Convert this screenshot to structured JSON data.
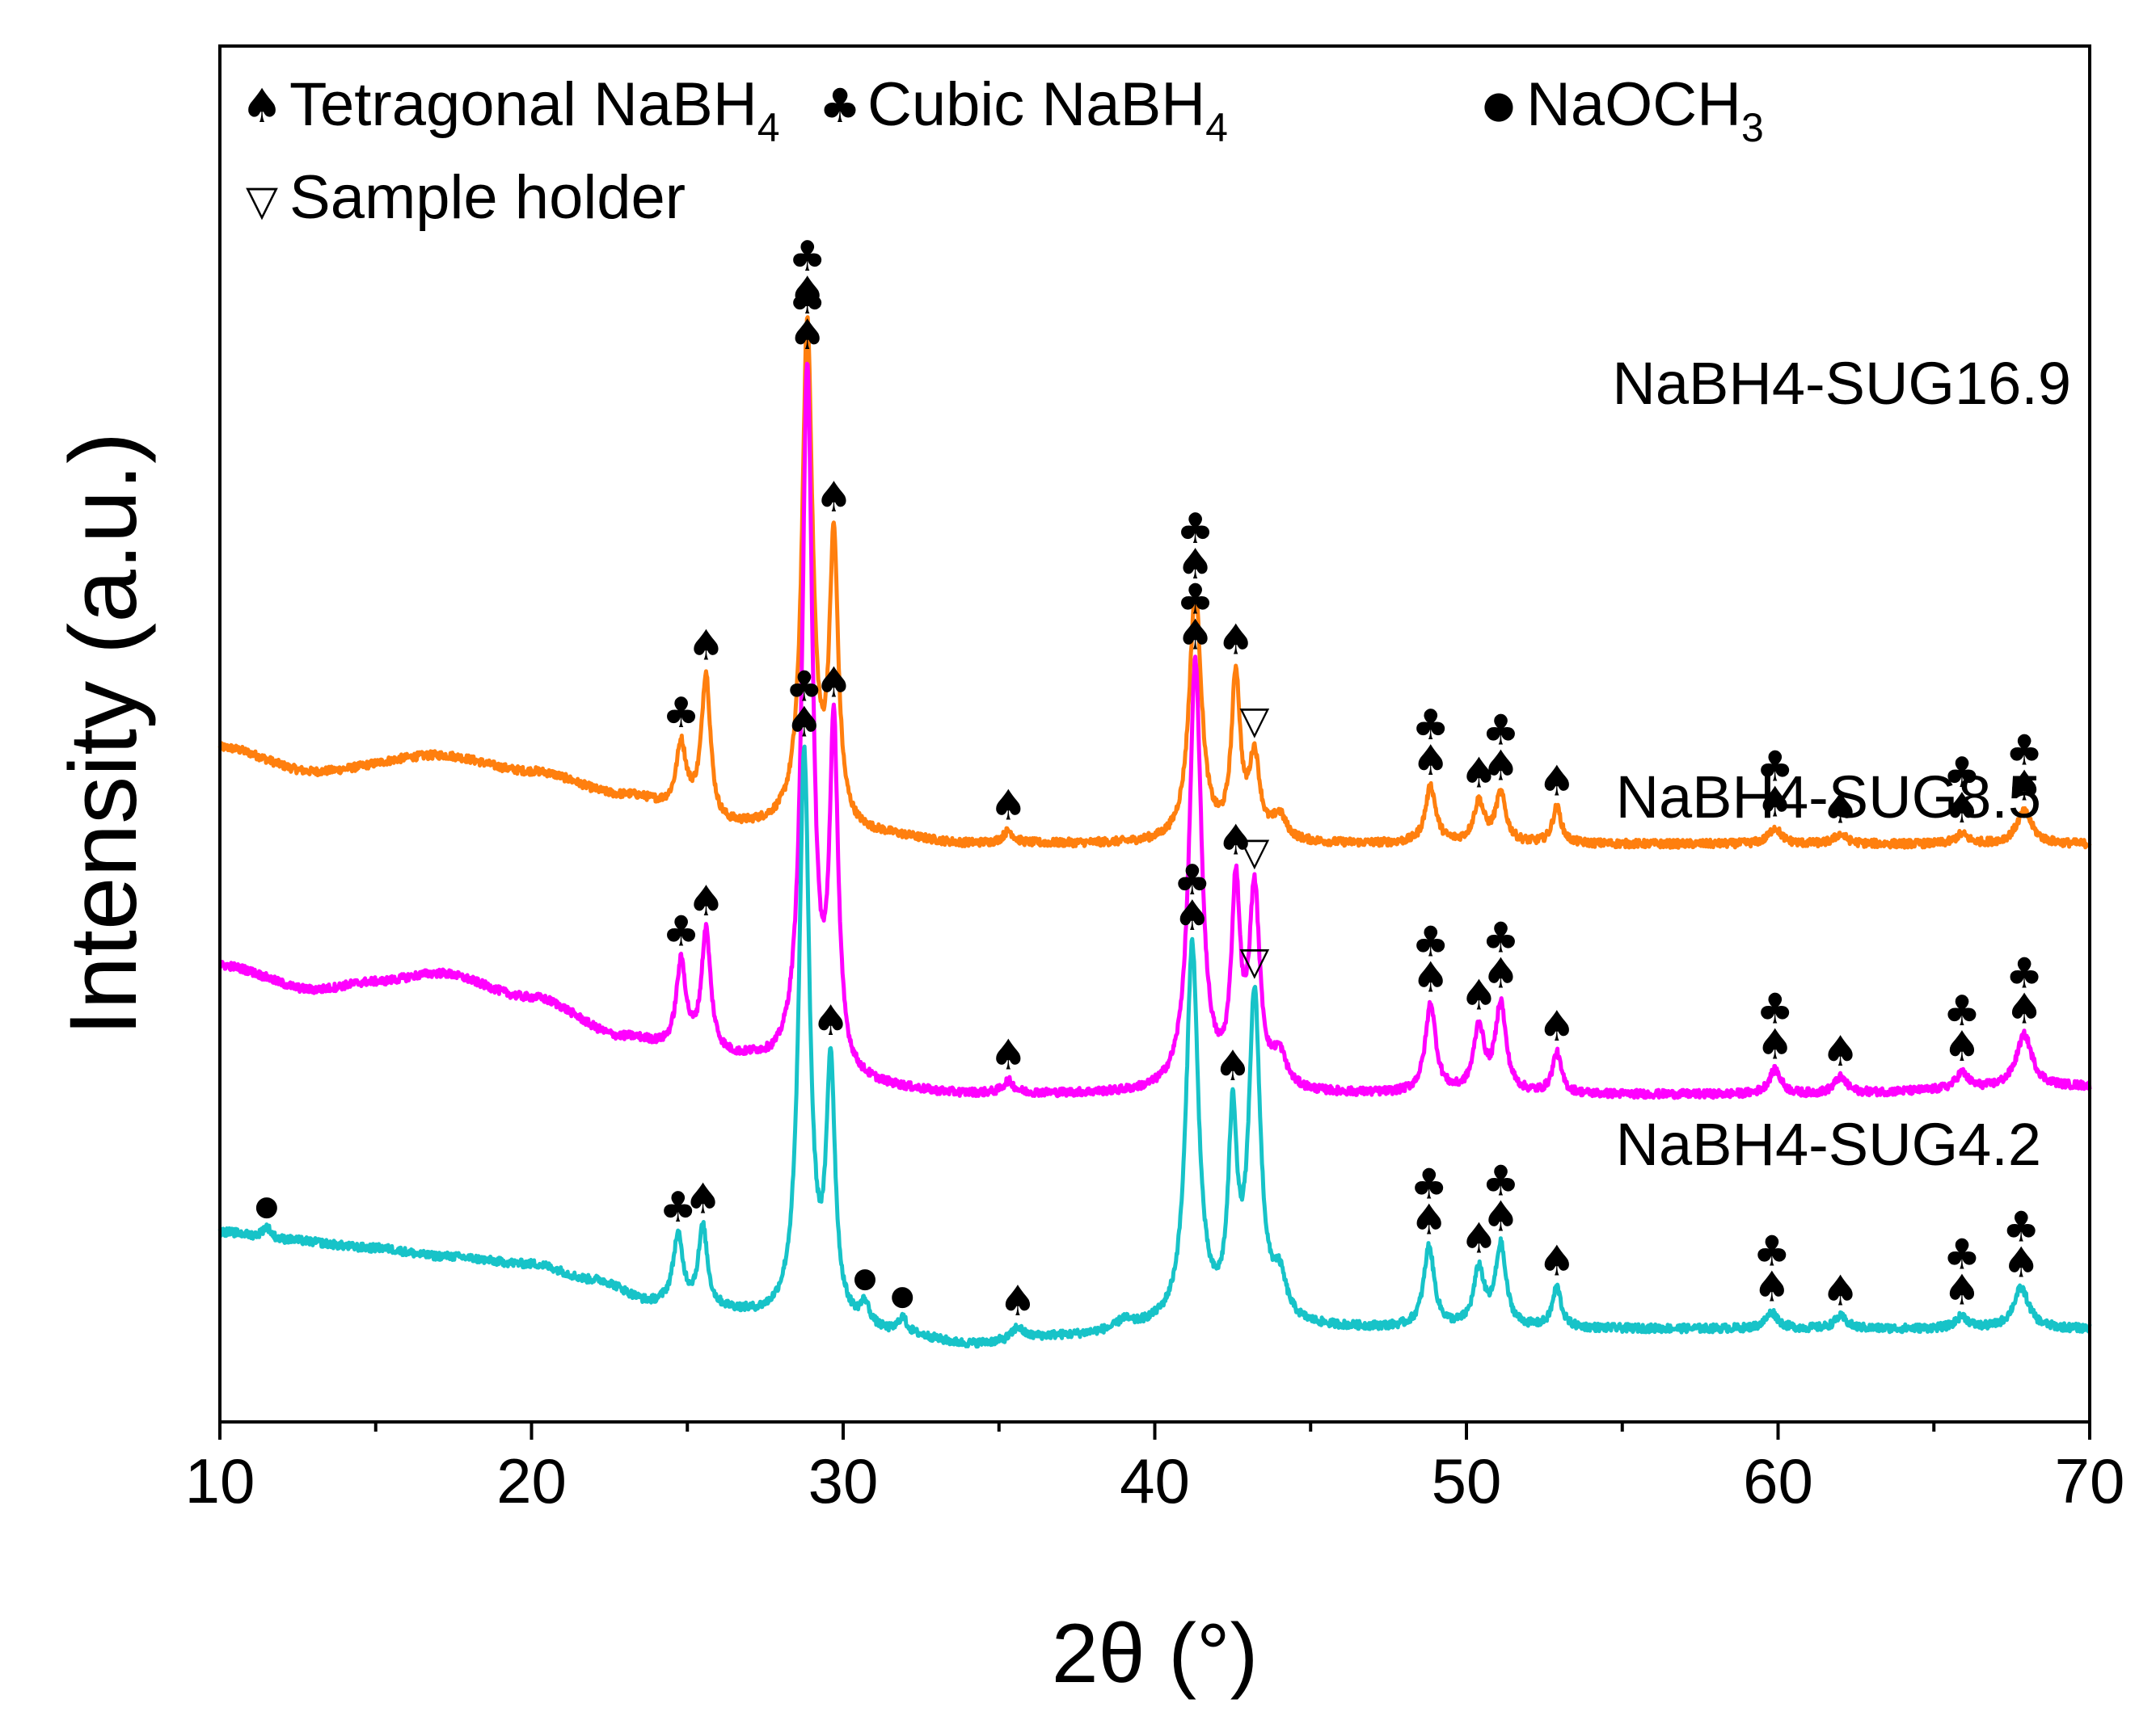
{
  "chart_data": {
    "type": "line",
    "title": "",
    "xlabel": "2θ (°)",
    "ylabel": "Intensity (a.u.)",
    "xlim": [
      10,
      70
    ],
    "xticks": [
      10,
      20,
      30,
      40,
      50,
      60,
      70
    ],
    "yticks_shown": false,
    "colors": {
      "SUG16.9": "#ff7f0e",
      "SUG8.5": "#ff00ff",
      "SUG4.2": "#17c3c8"
    },
    "legend": [
      {
        "symbol": "♠",
        "name": "tetragonal",
        "label": "Tetragonal NaBH",
        "sub": "4"
      },
      {
        "symbol": "♣",
        "name": "cubic",
        "label": "Cubic NaBH",
        "sub": "4"
      },
      {
        "symbol": "●",
        "name": "naoch3",
        "label": "NaOCH",
        "sub": "3"
      },
      {
        "symbol": "▽",
        "name": "holder",
        "label": "Sample holder",
        "sub": ""
      }
    ],
    "series": [
      {
        "name": "NaBH4-SUG16.9",
        "key": "SUG16.9",
        "offset": 0.62,
        "baseline": [
          [
            10,
            0.1
          ],
          [
            13,
            0.07
          ],
          [
            17,
            0.09
          ],
          [
            20,
            0.07
          ],
          [
            23,
            0.04
          ],
          [
            25,
            0.02
          ],
          [
            26,
            0.0
          ],
          [
            28,
            0.0
          ],
          [
            31,
            -0.01
          ],
          [
            34,
            -0.02
          ],
          [
            37,
            -0.02
          ],
          [
            40,
            -0.02
          ],
          [
            44,
            -0.02
          ],
          [
            48,
            -0.02
          ],
          [
            55,
            -0.02
          ],
          [
            60,
            -0.02
          ],
          [
            70,
            -0.02
          ]
        ],
        "peaks": [
          {
            "x": 24.8,
            "h": 0.08,
            "w": 0.28
          },
          {
            "x": 25.6,
            "h": 0.18,
            "w": 0.26
          },
          {
            "x": 28.85,
            "h": 0.62,
            "w": 0.3
          },
          {
            "x": 29.7,
            "h": 0.35,
            "w": 0.25
          },
          {
            "x": 35.3,
            "h": 0.015,
            "w": 0.3
          },
          {
            "x": 41.3,
            "h": 0.31,
            "w": 0.35
          },
          {
            "x": 42.6,
            "h": 0.2,
            "w": 0.25
          },
          {
            "x": 43.2,
            "h": 0.1,
            "w": 0.3
          },
          {
            "x": 44.0,
            "h": 0.03,
            "w": 0.4
          },
          {
            "x": 48.85,
            "h": 0.07,
            "w": 0.3
          },
          {
            "x": 50.4,
            "h": 0.05,
            "w": 0.3
          },
          {
            "x": 51.1,
            "h": 0.06,
            "w": 0.3
          },
          {
            "x": 52.9,
            "h": 0.045,
            "w": 0.25
          },
          {
            "x": 59.9,
            "h": 0.02,
            "w": 0.35
          },
          {
            "x": 62.0,
            "h": 0.012,
            "w": 0.35
          },
          {
            "x": 65.9,
            "h": 0.012,
            "w": 0.35
          },
          {
            "x": 67.9,
            "h": 0.04,
            "w": 0.45
          }
        ],
        "label": "NaBH4-SUG16.9"
      },
      {
        "name": "NaBH4-SUG8.5",
        "key": "SUG8.5",
        "offset": 0.3,
        "baseline": [
          [
            10,
            0.15
          ],
          [
            13,
            0.12
          ],
          [
            15,
            0.13
          ],
          [
            17,
            0.14
          ],
          [
            20,
            0.11
          ],
          [
            23,
            0.06
          ],
          [
            25,
            0.04
          ],
          [
            27,
            0.03
          ],
          [
            28,
            0.02
          ],
          [
            30,
            0.0
          ],
          [
            34,
            -0.01
          ],
          [
            37,
            -0.01
          ],
          [
            40,
            -0.01
          ],
          [
            44,
            -0.01
          ],
          [
            48,
            -0.01
          ],
          [
            55,
            -0.01
          ],
          [
            60,
            -0.01
          ],
          [
            70,
            0.0
          ]
        ],
        "peaks": [
          {
            "x": 24.8,
            "h": 0.11,
            "w": 0.28
          },
          {
            "x": 25.6,
            "h": 0.15,
            "w": 0.26
          },
          {
            "x": 28.85,
            "h": 0.87,
            "w": 0.3
          },
          {
            "x": 29.7,
            "h": 0.42,
            "w": 0.25
          },
          {
            "x": 35.3,
            "h": 0.015,
            "w": 0.3
          },
          {
            "x": 41.3,
            "h": 0.53,
            "w": 0.35
          },
          {
            "x": 42.6,
            "h": 0.24,
            "w": 0.25
          },
          {
            "x": 43.2,
            "h": 0.24,
            "w": 0.3
          },
          {
            "x": 44.0,
            "h": 0.04,
            "w": 0.4
          },
          {
            "x": 48.85,
            "h": 0.11,
            "w": 0.3
          },
          {
            "x": 50.4,
            "h": 0.08,
            "w": 0.3
          },
          {
            "x": 51.1,
            "h": 0.11,
            "w": 0.3
          },
          {
            "x": 52.9,
            "h": 0.05,
            "w": 0.25
          },
          {
            "x": 59.9,
            "h": 0.03,
            "w": 0.35
          },
          {
            "x": 62.0,
            "h": 0.02,
            "w": 0.35
          },
          {
            "x": 65.9,
            "h": 0.02,
            "w": 0.35
          },
          {
            "x": 67.9,
            "h": 0.065,
            "w": 0.45
          }
        ],
        "label": "NaBH4-SUG8.5"
      },
      {
        "name": "NaBH4-SUG4.2",
        "key": "SUG4.2",
        "offset": 0.0,
        "baseline": [
          [
            10,
            0.12
          ],
          [
            12,
            0.11
          ],
          [
            15,
            0.1
          ],
          [
            17,
            0.09
          ],
          [
            20,
            0.08
          ],
          [
            22,
            0.06
          ],
          [
            24,
            0.03
          ],
          [
            26,
            0.02
          ],
          [
            28,
            0.01
          ],
          [
            30,
            0.0
          ],
          [
            32,
            -0.01
          ],
          [
            34,
            -0.02
          ],
          [
            37,
            -0.01
          ],
          [
            40,
            0.0
          ],
          [
            44,
            0.0
          ],
          [
            47,
            0.0
          ],
          [
            55,
            0.0
          ],
          [
            60,
            0.0
          ],
          [
            70,
            0.0
          ]
        ],
        "peaks": [
          {
            "x": 11.5,
            "h": 0.015,
            "w": 0.25
          },
          {
            "x": 24.7,
            "h": 0.085,
            "w": 0.28
          },
          {
            "x": 25.5,
            "h": 0.1,
            "w": 0.26
          },
          {
            "x": 28.75,
            "h": 0.7,
            "w": 0.3
          },
          {
            "x": 29.6,
            "h": 0.31,
            "w": 0.25
          },
          {
            "x": 30.7,
            "h": 0.025,
            "w": 0.25
          },
          {
            "x": 31.9,
            "h": 0.02,
            "w": 0.25
          },
          {
            "x": 35.6,
            "h": 0.015,
            "w": 0.3
          },
          {
            "x": 39.0,
            "h": 0.01,
            "w": 0.3
          },
          {
            "x": 41.2,
            "h": 0.47,
            "w": 0.35
          },
          {
            "x": 42.5,
            "h": 0.24,
            "w": 0.25
          },
          {
            "x": 43.2,
            "h": 0.4,
            "w": 0.33
          },
          {
            "x": 44.0,
            "h": 0.05,
            "w": 0.4
          },
          {
            "x": 48.8,
            "h": 0.1,
            "w": 0.3
          },
          {
            "x": 50.4,
            "h": 0.07,
            "w": 0.3
          },
          {
            "x": 51.1,
            "h": 0.1,
            "w": 0.3
          },
          {
            "x": 52.9,
            "h": 0.05,
            "w": 0.25
          },
          {
            "x": 59.8,
            "h": 0.02,
            "w": 0.35
          },
          {
            "x": 62.0,
            "h": 0.015,
            "w": 0.35
          },
          {
            "x": 65.9,
            "h": 0.015,
            "w": 0.35
          },
          {
            "x": 67.8,
            "h": 0.05,
            "w": 0.45
          }
        ],
        "label": "NaBH4-SUG4.2"
      }
    ],
    "annotations": {
      "SUG16.9": [
        {
          "x": 24.8,
          "marks": [
            "♣"
          ]
        },
        {
          "x": 25.6,
          "marks": [
            "♠"
          ]
        },
        {
          "x": 28.85,
          "marks": [
            "♣",
            "♠"
          ]
        },
        {
          "x": 29.7,
          "marks": [
            "♠"
          ]
        },
        {
          "x": 35.3,
          "marks": [
            "♠"
          ]
        },
        {
          "x": 41.3,
          "marks": [
            "♣",
            "♠"
          ]
        },
        {
          "x": 42.6,
          "marks": [
            "♠"
          ]
        },
        {
          "x": 43.2,
          "marks": [
            "▽"
          ]
        },
        {
          "x": 48.85,
          "marks": [
            "♣",
            "♠"
          ]
        },
        {
          "x": 50.4,
          "marks": [
            "♠"
          ]
        },
        {
          "x": 51.1,
          "marks": [
            "♣",
            "♠"
          ]
        },
        {
          "x": 52.9,
          "marks": [
            "♠"
          ]
        },
        {
          "x": 59.9,
          "marks": [
            "♣",
            "♠"
          ]
        },
        {
          "x": 62.0,
          "marks": [
            "♠"
          ]
        },
        {
          "x": 65.9,
          "marks": [
            "♣",
            "♠"
          ]
        },
        {
          "x": 67.9,
          "marks": [
            "♣",
            "♠"
          ]
        }
      ],
      "SUG8.5": [
        {
          "x": 24.8,
          "marks": [
            "♣"
          ]
        },
        {
          "x": 25.6,
          "marks": [
            "♠"
          ]
        },
        {
          "x": 28.85,
          "marks": [
            "♣",
            "♠"
          ]
        },
        {
          "x": 29.7,
          "marks": [
            "♠"
          ]
        },
        {
          "x": 35.3,
          "marks": [
            "♠"
          ]
        },
        {
          "x": 41.3,
          "marks": [
            "♣",
            "♠"
          ]
        },
        {
          "x": 42.6,
          "marks": [
            "♠"
          ]
        },
        {
          "x": 43.2,
          "marks": [
            "▽"
          ]
        },
        {
          "x": 48.85,
          "marks": [
            "♣",
            "♠"
          ]
        },
        {
          "x": 50.4,
          "marks": [
            "♠"
          ]
        },
        {
          "x": 51.1,
          "marks": [
            "♣",
            "♠"
          ]
        },
        {
          "x": 52.9,
          "marks": [
            "♠"
          ]
        },
        {
          "x": 59.9,
          "marks": [
            "♣",
            "♠"
          ]
        },
        {
          "x": 62.0,
          "marks": [
            "♠"
          ]
        },
        {
          "x": 65.9,
          "marks": [
            "♣",
            "♠"
          ]
        },
        {
          "x": 67.9,
          "marks": [
            "♣",
            "♠"
          ]
        }
      ],
      "SUG4.2": [
        {
          "x": 11.5,
          "marks": [
            "●"
          ]
        },
        {
          "x": 24.7,
          "marks": [
            "♣"
          ]
        },
        {
          "x": 25.5,
          "marks": [
            "♠"
          ]
        },
        {
          "x": 28.75,
          "marks": [
            "♣",
            "♠"
          ]
        },
        {
          "x": 29.6,
          "marks": [
            "♠"
          ]
        },
        {
          "x": 30.7,
          "marks": [
            "●"
          ]
        },
        {
          "x": 31.9,
          "marks": [
            "●"
          ]
        },
        {
          "x": 35.6,
          "marks": [
            "♠"
          ]
        },
        {
          "x": 41.2,
          "marks": [
            "♣",
            "♠"
          ]
        },
        {
          "x": 42.5,
          "marks": [
            "♠"
          ]
        },
        {
          "x": 43.2,
          "marks": [
            "▽"
          ]
        },
        {
          "x": 48.8,
          "marks": [
            "♣",
            "♠"
          ]
        },
        {
          "x": 50.4,
          "marks": [
            "♠"
          ]
        },
        {
          "x": 51.1,
          "marks": [
            "♣",
            "♠"
          ]
        },
        {
          "x": 52.9,
          "marks": [
            "♠"
          ]
        },
        {
          "x": 59.8,
          "marks": [
            "♣",
            "♠"
          ]
        },
        {
          "x": 62.0,
          "marks": [
            "♠"
          ]
        },
        {
          "x": 65.9,
          "marks": [
            "♣",
            "♠"
          ]
        },
        {
          "x": 67.8,
          "marks": [
            "♣",
            "♠"
          ]
        }
      ]
    }
  }
}
